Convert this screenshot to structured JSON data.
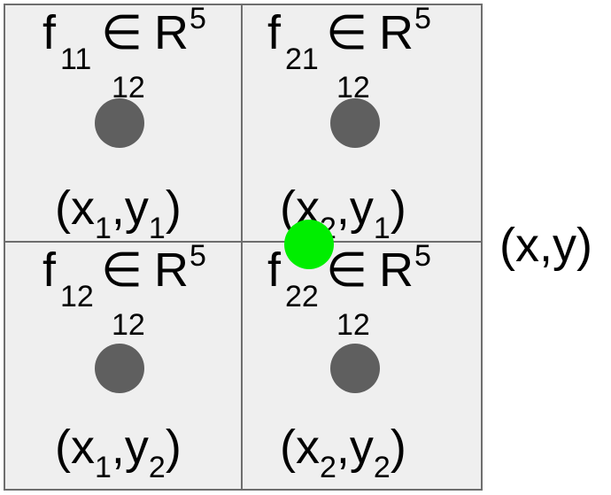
{
  "cells": {
    "c11": {
      "feature_symbol": "f",
      "feature_index": "11",
      "element_symbol": "∈",
      "space_symbol": "R",
      "space_exponent": "5",
      "space_subscript": "12",
      "coord_open": "(x",
      "coord_x_sub": "1",
      "coord_mid": ",y",
      "coord_y_sub": "1",
      "coord_close": ")"
    },
    "c21": {
      "feature_symbol": "f",
      "feature_index": "21",
      "element_symbol": "∈",
      "space_symbol": "R",
      "space_exponent": "5",
      "space_subscript": "12",
      "coord_open": "(x",
      "coord_x_sub": "2",
      "coord_mid": ",y",
      "coord_y_sub": "1",
      "coord_close": ")"
    },
    "c12": {
      "feature_symbol": "f",
      "feature_index": "12",
      "element_symbol": "∈",
      "space_symbol": "R",
      "space_exponent": "5",
      "space_subscript": "12",
      "coord_open": "(x",
      "coord_x_sub": "1",
      "coord_mid": ",y",
      "coord_y_sub": "2",
      "coord_close": ")"
    },
    "c22": {
      "feature_symbol": "f",
      "feature_index": "22",
      "element_symbol": "∈",
      "space_symbol": "R",
      "space_exponent": "5",
      "space_subscript": "12",
      "coord_open": "(x",
      "coord_x_sub": "2",
      "coord_mid": ",y",
      "coord_y_sub": "2",
      "coord_close": ")"
    }
  },
  "query_point": {
    "label": "(x,y)"
  },
  "colors": {
    "cell_background": "#efefef",
    "grid_line": "#6e6e6e",
    "sample_point": "#5f5f5f",
    "query_point": "#00ee00"
  }
}
